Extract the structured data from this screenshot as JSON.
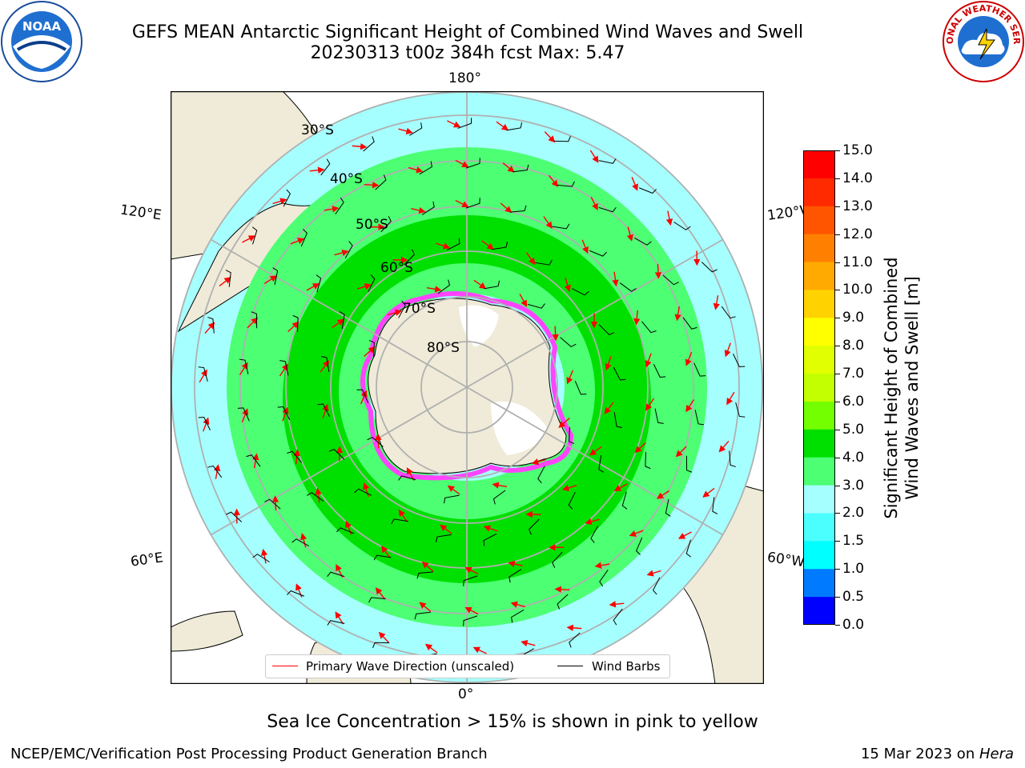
{
  "title_line1": "GEFS MEAN Antarctic Significant Height of Combined Wind Waves and Swell",
  "title_line2": "20230313 t00z 384h fcst   Max: 5.47",
  "logos": {
    "left": "NOAA",
    "right": "NATIONAL WEATHER SERVICE"
  },
  "longitude_labels": {
    "top": "180°",
    "bottom": "0°",
    "upper_left": "120°E",
    "upper_right": "120°W",
    "lower_left": "60°E",
    "lower_right": "60°W"
  },
  "latitude_labels": [
    "30°S",
    "40°S",
    "50°S",
    "60°S",
    "70°S",
    "80°S"
  ],
  "colorbar": {
    "label_line1": "Significant Height of Combined",
    "label_line2": "Wind Waves and Swell [m]",
    "ticks": [
      "15.0",
      "14.0",
      "13.0",
      "12.0",
      "11.0",
      "10.0",
      "9.0",
      "8.0",
      "7.0",
      "6.0",
      "5.0",
      "4.0",
      "3.0",
      "2.0",
      "1.5",
      "1.0",
      "0.5",
      "0.0"
    ],
    "colors": [
      "#ff0000",
      "#ff2a00",
      "#ff5500",
      "#ff8000",
      "#ffaa00",
      "#ffd200",
      "#ffff00",
      "#e1ff00",
      "#c3ff00",
      "#73ff00",
      "#00e000",
      "#4cff73",
      "#a6ffff",
      "#4cffff",
      "#00ffff",
      "#007bff",
      "#0000ff"
    ]
  },
  "legend": {
    "primary": "Primary Wave Direction (unscaled)",
    "wind": "Wind Barbs"
  },
  "footer_note": "Sea Ice Concentration > 15% is shown in pink to yellow",
  "credit": "NCEP/EMC/Verification Post Processing Product Generation Branch",
  "date": "15 Mar 2023 on ",
  "host": "Hera",
  "colors": {
    "land": "#efebd8",
    "ocean_low": "#a6ffff",
    "ocean_mid": "#4cff73",
    "ocean_high": "#00e000",
    "ice": "#ff44ff",
    "arrow": "#ff0000"
  }
}
